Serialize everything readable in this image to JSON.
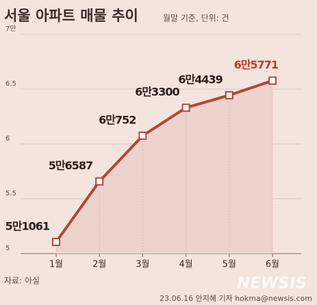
{
  "chart_data": {
    "type": "line",
    "title": "서울 아파트 매물 추이",
    "subtitle": "월말 기준, 단위: 건",
    "categories": [
      "1월",
      "2월",
      "3월",
      "4월",
      "5월",
      "6월"
    ],
    "series": [
      {
        "name": "서울 아파트 매물",
        "color": "#b3463a",
        "values": [
          5.1061,
          5.6587,
          6.0752,
          6.33,
          6.4439,
          6.5771
        ],
        "value_labels": [
          "5만1061",
          "5만6587",
          "6만752",
          "6만3300",
          "6만4439",
          "6만5771"
        ]
      }
    ],
    "highlight_color": "#c0392b",
    "area_fill": "#ecd3cc",
    "ylim": [
      5,
      7
    ],
    "yticks": [
      5,
      5.5,
      6,
      6.5,
      {
        "value": 7,
        "label": "7만"
      }
    ],
    "grid": true,
    "source": "자료: 아실",
    "credit": "23.06.16 안지혜 기자 hokma@newsis.com",
    "watermark": "NEWSIS"
  }
}
